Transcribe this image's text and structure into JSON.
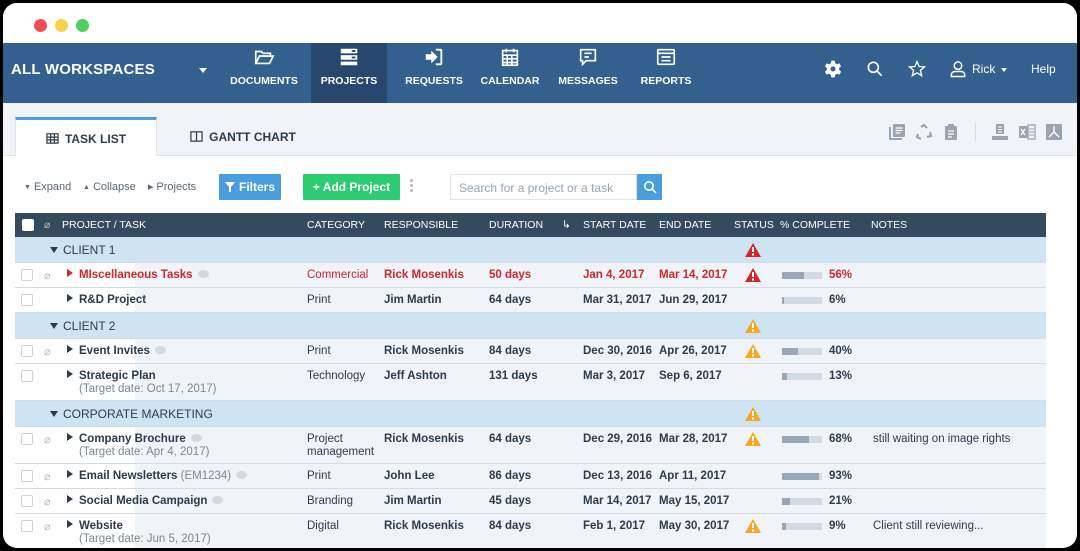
{
  "window": {
    "controls": [
      "close",
      "minimize",
      "maximize"
    ]
  },
  "navbar": {
    "workspace": "ALL WORKSPACES",
    "items": [
      {
        "label": "DOCUMENTS",
        "icon": "folder-open-icon",
        "active": false
      },
      {
        "label": "PROJECTS",
        "icon": "server-stack-icon",
        "active": true
      },
      {
        "label": "REQUESTS",
        "icon": "sign-in-icon",
        "active": false
      },
      {
        "label": "CALENDAR",
        "icon": "calendar-icon",
        "active": false
      },
      {
        "label": "MESSAGES",
        "icon": "message-icon",
        "active": false
      },
      {
        "label": "REPORTS",
        "icon": "report-list-icon",
        "active": false
      }
    ],
    "right": {
      "settings_icon": "gear-icon",
      "search_icon": "search-icon",
      "favorite_icon": "star-icon",
      "user": "Rick",
      "help": "Help"
    },
    "colors": {
      "bg": "#33608f",
      "active": "#27476e"
    }
  },
  "tabs": [
    {
      "label": "TASK LIST",
      "icon": "table-icon",
      "active": true
    },
    {
      "label": "GANTT CHART",
      "icon": "columns-icon",
      "active": false
    }
  ],
  "tab_tools": [
    "copy-list-icon",
    "recycle-icon",
    "clipboard-icon",
    "print-icon",
    "excel-icon",
    "pdf-icon"
  ],
  "toolbar": {
    "expand": "Expand",
    "collapse": "Collapse",
    "projects": "Projects",
    "filters": "Filters",
    "add_project": "+ Add Project",
    "search_placeholder": "Search for a project or a task",
    "colors": {
      "filters": "#4a9ede",
      "add": "#2ecc71"
    }
  },
  "grid": {
    "columns": {
      "project": "PROJECT / TASK",
      "category": "CATEGORY",
      "responsible": "RESPONSIBLE",
      "duration": "DURATION",
      "start": "START DATE",
      "end": "END DATE",
      "status": "STATUS",
      "complete": "% COMPLETE",
      "notes": "NOTES"
    },
    "groups": [
      {
        "name": "CLIENT 1",
        "status": "red-warning",
        "rows": [
          {
            "name": "MIscellaneous Tasks",
            "code": "",
            "target": "",
            "category": "Commercial",
            "responsible": "Rick Mosenkis",
            "duration": "50 days",
            "start": "Jan 4, 2017",
            "end": "Mar 14, 2017",
            "status": "red-warning",
            "complete": "56%",
            "progress": 56,
            "notes": "",
            "overdue": true,
            "attach": true,
            "comment": true
          },
          {
            "name": "R&D Project",
            "code": "",
            "target": "",
            "category": "Print",
            "responsible": "Jim Martin",
            "duration": "64 days",
            "start": "Mar 31, 2017",
            "end": "Jun 29, 2017",
            "status": "",
            "complete": "6%",
            "progress": 6,
            "notes": "",
            "overdue": false,
            "attach": false,
            "comment": false
          }
        ]
      },
      {
        "name": "CLIENT 2",
        "status": "orange-warning",
        "rows": [
          {
            "name": "Event Invites",
            "code": "",
            "target": "",
            "category": "Print",
            "responsible": "Rick Mosenkis",
            "duration": "84 days",
            "start": "Dec 30, 2016",
            "end": "Apr 26, 2017",
            "status": "orange-warning",
            "complete": "40%",
            "progress": 40,
            "notes": "",
            "overdue": false,
            "attach": true,
            "comment": true
          },
          {
            "name": "Strategic Plan",
            "code": "",
            "target": "(Target date: Oct 17, 2017)",
            "category": "Technology",
            "responsible": "Jeff Ashton",
            "duration": "131 days",
            "start": "Mar 3, 2017",
            "end": "Sep 6, 2017",
            "status": "",
            "complete": "13%",
            "progress": 13,
            "notes": "",
            "overdue": false,
            "attach": false,
            "comment": false
          }
        ]
      },
      {
        "name": "CORPORATE MARKETING",
        "status": "orange-warning",
        "rows": [
          {
            "name": "Company Brochure",
            "code": "",
            "target": "(Target date: Apr 4, 2017)",
            "category": "Project management",
            "responsible": "Rick Mosenkis",
            "duration": "64 days",
            "start": "Dec 29, 2016",
            "end": "Mar 28, 2017",
            "status": "orange-warning",
            "complete": "68%",
            "progress": 68,
            "notes": "still waiting on image rights",
            "overdue": false,
            "attach": true,
            "comment": true
          },
          {
            "name": "Email Newsletters",
            "code": "(EM1234)",
            "target": "",
            "category": "Print",
            "responsible": "John Lee",
            "duration": "86 days",
            "start": "Dec 13, 2016",
            "end": "Apr 11, 2017",
            "status": "",
            "complete": "93%",
            "progress": 93,
            "notes": "",
            "overdue": false,
            "attach": true,
            "comment": true
          },
          {
            "name": "Social Media Campaign",
            "code": "",
            "target": "",
            "category": "Branding",
            "responsible": "Jim Martin",
            "duration": "45 days",
            "start": "Mar 14, 2017",
            "end": "May 15, 2017",
            "status": "",
            "complete": "21%",
            "progress": 21,
            "notes": "",
            "overdue": false,
            "attach": true,
            "comment": true
          },
          {
            "name": "Website",
            "code": "",
            "target": "(Target date: Jun 5, 2017)",
            "category": "Digital",
            "responsible": "Rick Mosenkis",
            "duration": "84 days",
            "start": "Feb 1, 2017",
            "end": "May 30, 2017",
            "status": "orange-warning",
            "complete": "9%",
            "progress": 9,
            "notes": "Client still reviewing...",
            "overdue": false,
            "attach": true,
            "comment": false
          }
        ]
      }
    ],
    "colors": {
      "header": "#344a5f",
      "group": "#cfe4f3",
      "row": "#f0f3f8",
      "overdue": "#d0272a",
      "warning_red": "#d0272a",
      "warning_orange": "#f5a623",
      "progress_fill": "#98a6b5",
      "progress_track": "#d3dae2"
    }
  }
}
